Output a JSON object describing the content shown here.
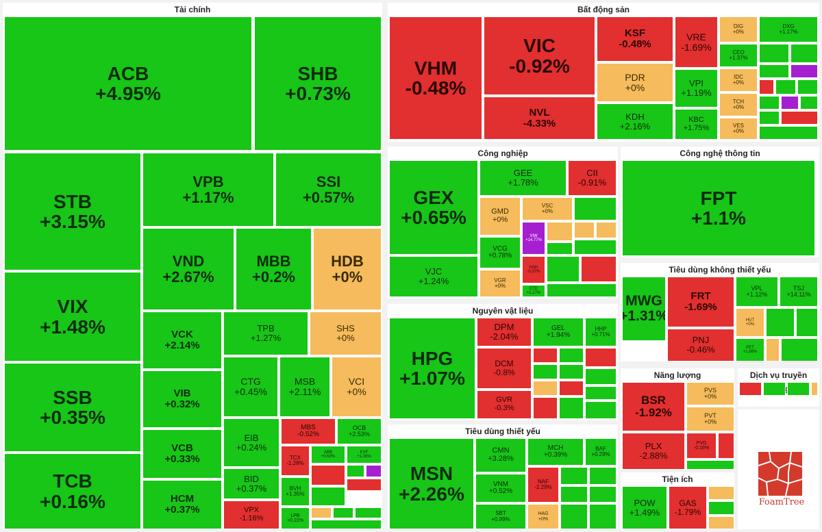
{
  "colors": {
    "up": "#17c617",
    "down": "#e22f2f",
    "flat": "#f5bb5c",
    "ceiling": "#a51fd1"
  },
  "chart_data": {
    "type": "treemap",
    "sectors": [
      {
        "name": "Tài chính",
        "stocks": [
          {
            "ticker": "ACB",
            "change": "+4.95%",
            "status": "up"
          },
          {
            "ticker": "SHB",
            "change": "+0.73%",
            "status": "up"
          },
          {
            "ticker": "STB",
            "change": "+3.15%",
            "status": "up"
          },
          {
            "ticker": "VPB",
            "change": "+1.17%",
            "status": "up"
          },
          {
            "ticker": "SSI",
            "change": "+0.57%",
            "status": "up"
          },
          {
            "ticker": "VND",
            "change": "+2.67%",
            "status": "up"
          },
          {
            "ticker": "MBB",
            "change": "+0.2%",
            "status": "up"
          },
          {
            "ticker": "HDB",
            "change": "+0%",
            "status": "flat"
          },
          {
            "ticker": "VIX",
            "change": "+1.48%",
            "status": "up"
          },
          {
            "ticker": "VCK",
            "change": "+2.14%",
            "status": "up"
          },
          {
            "ticker": "TPB",
            "change": "+1.27%",
            "status": "up"
          },
          {
            "ticker": "SHS",
            "change": "+0%",
            "status": "flat"
          },
          {
            "ticker": "SSB",
            "change": "+0.35%",
            "status": "up"
          },
          {
            "ticker": "VIB",
            "change": "+0.32%",
            "status": "up"
          },
          {
            "ticker": "CTG",
            "change": "+0.45%",
            "status": "up"
          },
          {
            "ticker": "MSB",
            "change": "+2.11%",
            "status": "up"
          },
          {
            "ticker": "VCI",
            "change": "+0%",
            "status": "flat"
          },
          {
            "ticker": "EIB",
            "change": "+0.24%",
            "status": "up"
          },
          {
            "ticker": "MBS",
            "change": "-0.52%",
            "status": "down"
          },
          {
            "ticker": "OCB",
            "change": "+2.53%",
            "status": "up"
          },
          {
            "ticker": "VCB",
            "change": "+0.33%",
            "status": "up"
          },
          {
            "ticker": "TCX",
            "change": "-1.28%",
            "status": "down"
          },
          {
            "ticker": "ABB",
            "change": "+0.63%",
            "status": "up"
          },
          {
            "ticker": "EVF",
            "change": "+1.06%",
            "status": "up"
          },
          {
            "ticker": "TCB",
            "change": "+0.16%",
            "status": "up"
          },
          {
            "ticker": "BID",
            "change": "+0.37%",
            "status": "up"
          },
          {
            "ticker": "BVH",
            "change": "+1.35%",
            "status": "up"
          },
          {
            "ticker": "HCM",
            "change": "+0.37%",
            "status": "up"
          },
          {
            "ticker": "LPB",
            "change": "+0.22%",
            "status": "up"
          },
          {
            "ticker": "VPX",
            "change": "-1.16%",
            "status": "down"
          }
        ]
      },
      {
        "name": "Bất động sản",
        "stocks": [
          {
            "ticker": "VHM",
            "change": "-0.48%",
            "status": "down"
          },
          {
            "ticker": "VIC",
            "change": "-0.92%",
            "status": "down"
          },
          {
            "ticker": "NVL",
            "change": "-4.33%",
            "status": "down"
          },
          {
            "ticker": "KSF",
            "change": "-0.48%",
            "status": "down"
          },
          {
            "ticker": "VRE",
            "change": "-1.69%",
            "status": "down"
          },
          {
            "ticker": "PDR",
            "change": "+0%",
            "status": "flat"
          },
          {
            "ticker": "VPI",
            "change": "+1.19%",
            "status": "up"
          },
          {
            "ticker": "KDH",
            "change": "+2.16%",
            "status": "up"
          },
          {
            "ticker": "KBC",
            "change": "+1.75%",
            "status": "up"
          },
          {
            "ticker": "DIG",
            "change": "+0%",
            "status": "flat"
          },
          {
            "ticker": "DXG",
            "change": "+1.17%",
            "status": "up"
          },
          {
            "ticker": "CEO",
            "change": "+1.37%",
            "status": "up"
          },
          {
            "ticker": "IDC",
            "change": "+0%",
            "status": "flat"
          },
          {
            "ticker": "TCH",
            "change": "+0%",
            "status": "flat"
          },
          {
            "ticker": "VES",
            "change": "+0%",
            "status": "flat"
          }
        ]
      },
      {
        "name": "Công nghiệp",
        "stocks": [
          {
            "ticker": "GEX",
            "change": "+0.65%",
            "status": "up"
          },
          {
            "ticker": "GEE",
            "change": "+1.78%",
            "status": "up"
          },
          {
            "ticker": "CII",
            "change": "-0.91%",
            "status": "down"
          },
          {
            "ticker": "GMD",
            "change": "+0%",
            "status": "flat"
          },
          {
            "ticker": "VSC",
            "change": "+0%",
            "status": "flat"
          },
          {
            "ticker": "VIW",
            "change": "+14.77%",
            "status": "ceiling"
          },
          {
            "ticker": "VCG",
            "change": "+0.78%",
            "status": "up"
          },
          {
            "ticker": "HAH",
            "change": "-0.37%",
            "status": "down"
          },
          {
            "ticker": "VJC",
            "change": "+1.24%",
            "status": "up"
          },
          {
            "ticker": "VGR",
            "change": "+0%",
            "status": "flat"
          },
          {
            "ticker": "CTD",
            "change": "+1.27%",
            "status": "up"
          }
        ]
      },
      {
        "name": "Công nghệ thông tin",
        "stocks": [
          {
            "ticker": "FPT",
            "change": "+1.1%",
            "status": "up"
          }
        ]
      },
      {
        "name": "Nguyên vật liệu",
        "stocks": [
          {
            "ticker": "HPG",
            "change": "+1.07%",
            "status": "up"
          },
          {
            "ticker": "DPM",
            "change": "-2.04%",
            "status": "down"
          },
          {
            "ticker": "GEL",
            "change": "+1.94%",
            "status": "up"
          },
          {
            "ticker": "HHP",
            "change": "+0.71%",
            "status": "up"
          },
          {
            "ticker": "DCM",
            "change": "-0.8%",
            "status": "down"
          },
          {
            "ticker": "GVR",
            "change": "-0.3%",
            "status": "down"
          }
        ]
      },
      {
        "name": "Tiêu dùng không thiết yếu",
        "stocks": [
          {
            "ticker": "MWG",
            "change": "+1.31%",
            "status": "up"
          },
          {
            "ticker": "FRT",
            "change": "-1.69%",
            "status": "down"
          },
          {
            "ticker": "VPL",
            "change": "+1.12%",
            "status": "up"
          },
          {
            "ticker": "TSJ",
            "change": "+14.11%",
            "status": "up"
          },
          {
            "ticker": "HUT",
            "change": "+0%",
            "status": "flat"
          },
          {
            "ticker": "PNJ",
            "change": "-0.46%",
            "status": "down"
          },
          {
            "ticker": "PET",
            "change": "+1.86%",
            "status": "up"
          }
        ]
      },
      {
        "name": "Tiêu dùng thiết yếu",
        "stocks": [
          {
            "ticker": "MSN",
            "change": "+2.26%",
            "status": "up"
          },
          {
            "ticker": "CMN",
            "change": "+3.28%",
            "status": "up"
          },
          {
            "ticker": "MCH",
            "change": "+0.39%",
            "status": "up"
          },
          {
            "ticker": "BAF",
            "change": "+0.29%",
            "status": "up"
          },
          {
            "ticker": "VNM",
            "change": "+0.52%",
            "status": "up"
          },
          {
            "ticker": "NAF",
            "change": "-2.29%",
            "status": "down"
          },
          {
            "ticker": "SBT",
            "change": "+0.99%",
            "status": "up"
          },
          {
            "ticker": "HAG",
            "change": "+0%",
            "status": "flat"
          }
        ]
      },
      {
        "name": "Năng lượng",
        "stocks": [
          {
            "ticker": "BSR",
            "change": "-1.92%",
            "status": "down"
          },
          {
            "ticker": "PVS",
            "change": "+0%",
            "status": "flat"
          },
          {
            "ticker": "PVT",
            "change": "+0%",
            "status": "flat"
          },
          {
            "ticker": "PLX",
            "change": "-2.88%",
            "status": "down"
          },
          {
            "ticker": "PVD",
            "change": "-0.16%",
            "status": "down"
          }
        ]
      },
      {
        "name": "Dịch vụ truyền thông",
        "stocks": []
      },
      {
        "name": "Tiện ích",
        "stocks": [
          {
            "ticker": "POW",
            "change": "+1.49%",
            "status": "up"
          },
          {
            "ticker": "GAS",
            "change": "-1.79%",
            "status": "down"
          }
        ]
      }
    ]
  },
  "logo": {
    "text": "FoamTree"
  }
}
